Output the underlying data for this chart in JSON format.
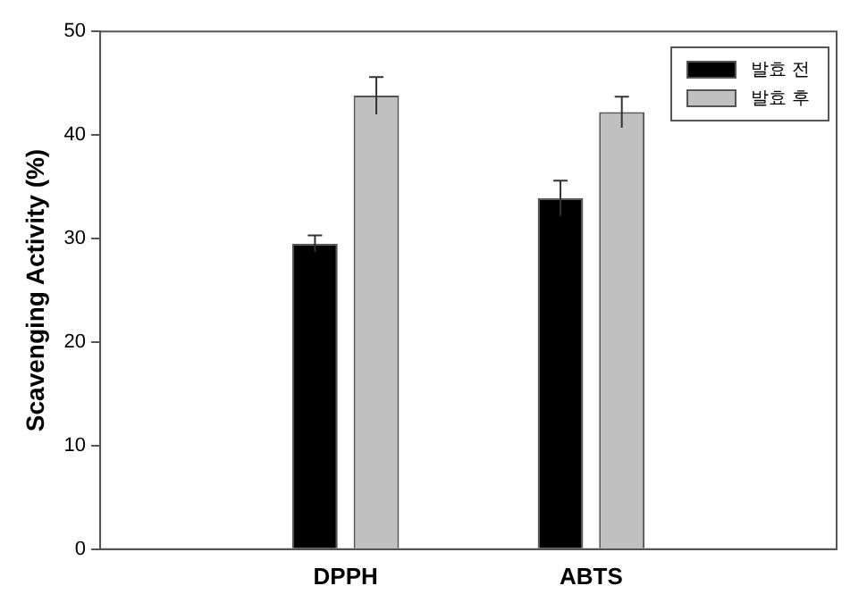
{
  "chart_data": {
    "type": "bar",
    "ylabel": "Scavenging Activity (%)",
    "categories": [
      "DPPH",
      "ABTS"
    ],
    "series": [
      {
        "name": "발효 전",
        "color": "#000000",
        "values": [
          29.5,
          33.9
        ],
        "errors": [
          0.8,
          1.7
        ]
      },
      {
        "name": "발효 후",
        "color": "#c0c0c0",
        "values": [
          43.8,
          42.2
        ],
        "errors": [
          1.8,
          1.5
        ]
      }
    ],
    "ylim": [
      0,
      50
    ],
    "yticks": [
      0,
      10,
      20,
      30,
      40,
      50
    ],
    "grid": false,
    "legend": "top right"
  }
}
